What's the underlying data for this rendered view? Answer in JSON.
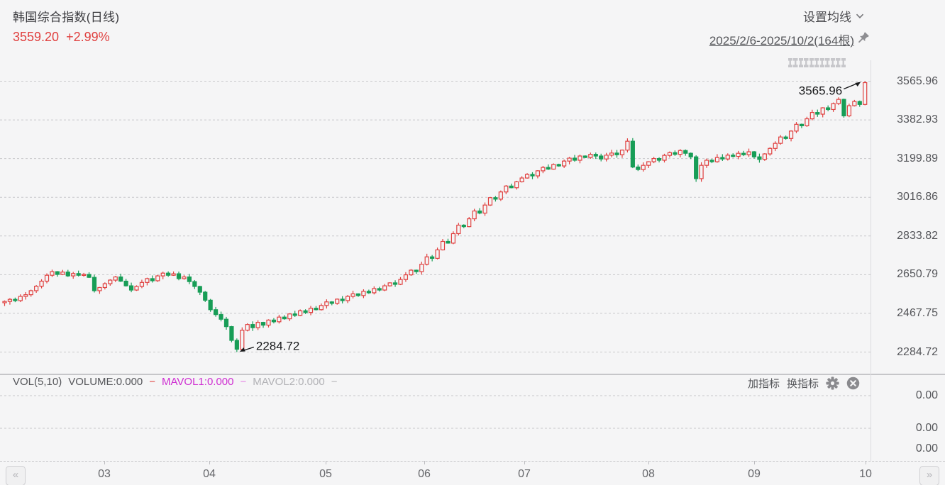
{
  "header": {
    "title": "韩国综合指数(日线)",
    "price": "3559.20",
    "change": "+2.99%",
    "ma_settings_label": "设置均线",
    "date_range": "2025/2/6-2025/10/2(164根)"
  },
  "colors": {
    "up": "#e0403f",
    "down": "#179d56",
    "grid": "#c8c8cb",
    "annotation_text": "#17181a",
    "background": "#f5f5f6",
    "price_text": "#e0403f",
    "mavol1": "#ce2ed1"
  },
  "chart_data": {
    "type": "candlestick",
    "title": "韩国综合指数(日线)",
    "period": "2025/2/6-2025/10/2",
    "bar_count": 164,
    "y_axis": {
      "labels": [
        "3565.96",
        "3382.93",
        "3199.89",
        "3016.86",
        "2833.82",
        "2650.79",
        "2467.75",
        "2284.72"
      ],
      "values": [
        3565.96,
        3382.93,
        3199.89,
        3016.86,
        2833.82,
        2650.79,
        2467.75,
        2284.72
      ],
      "max": 3565.96,
      "min": 2284.72,
      "grid": "dashed"
    },
    "x_axis": {
      "labels": [
        "03",
        "04",
        "05",
        "06",
        "07",
        "08",
        "09",
        "10"
      ],
      "positions": [
        147,
        295,
        459,
        598,
        739,
        914,
        1063,
        1220
      ]
    },
    "annotations": {
      "high": {
        "index": 163,
        "value": 3565.96,
        "label": "3565.96"
      },
      "low": {
        "index": 44,
        "value": 2284.72,
        "label": "2284.72"
      }
    },
    "last_close": 3559.2,
    "open_policy": "previous_close",
    "closes": [
      2524,
      2534,
      2528,
      2548,
      2556,
      2575,
      2596,
      2620,
      2648,
      2665,
      2652,
      2663,
      2645,
      2656,
      2648,
      2652,
      2638,
      2575,
      2590,
      2608,
      2625,
      2640,
      2620,
      2598,
      2578,
      2595,
      2614,
      2632,
      2622,
      2645,
      2658,
      2648,
      2655,
      2632,
      2640,
      2618,
      2595,
      2568,
      2530,
      2485,
      2462,
      2440,
      2405,
      2340,
      2298,
      2388,
      2415,
      2400,
      2425,
      2412,
      2436,
      2428,
      2450,
      2442,
      2465,
      2458,
      2480,
      2472,
      2492,
      2485,
      2505,
      2522,
      2515,
      2535,
      2528,
      2548,
      2560,
      2552,
      2572,
      2565,
      2585,
      2578,
      2598,
      2612,
      2605,
      2628,
      2650,
      2672,
      2665,
      2700,
      2735,
      2728,
      2768,
      2808,
      2800,
      2845,
      2885,
      2878,
      2915,
      2952,
      2942,
      2980,
      3015,
      3008,
      3042,
      3070,
      3062,
      3090,
      3108,
      3125,
      3118,
      3142,
      3158,
      3150,
      3172,
      3165,
      3188,
      3202,
      3192,
      3212,
      3205,
      3220,
      3212,
      3198,
      3216,
      3226,
      3218,
      3240,
      3282,
      3160,
      3148,
      3168,
      3185,
      3200,
      3192,
      3215,
      3228,
      3220,
      3238,
      3225,
      3208,
      3105,
      3168,
      3192,
      3185,
      3205,
      3198,
      3216,
      3210,
      3225,
      3218,
      3232,
      3208,
      3196,
      3222,
      3248,
      3272,
      3302,
      3295,
      3330,
      3362,
      3355,
      3388,
      3418,
      3410,
      3440,
      3432,
      3460,
      3480,
      3402,
      3450,
      3470,
      3456,
      3559.2
    ]
  },
  "volume_panel": {
    "indicator": "VOL(5,10)",
    "volume_label": "VOLUME:0.000",
    "mavol1_label": "MAVOL1:0.000",
    "mavol2_label": "MAVOL2:0.000",
    "dash": "−",
    "add_indicator": "加指标",
    "switch_indicator": "换指标",
    "y_labels": [
      "0.00",
      "0.00",
      "0.00"
    ]
  },
  "time_axis": {
    "prev": "«",
    "next": "»"
  }
}
